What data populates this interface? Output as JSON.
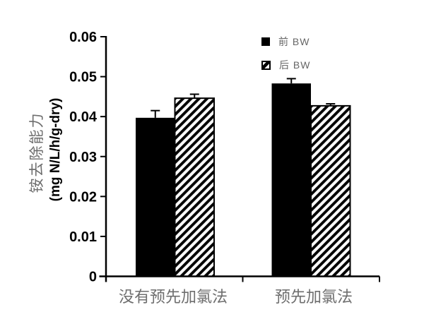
{
  "figure": {
    "background": "#ffffff",
    "axis_color": "#000000",
    "gray_text_color": "#6e6e6e"
  },
  "legend": {
    "position": "top-right",
    "items": [
      {
        "label": "前 BW",
        "swatch": "solid-black-square"
      },
      {
        "label": "后 BW",
        "swatch": "diagonal-hatch-square"
      }
    ]
  },
  "chart_data": {
    "type": "bar",
    "title": "",
    "categories": [
      "没有预先加氯法",
      "预先加氯法"
    ],
    "series": [
      {
        "name": "前 BW",
        "fill": "solid",
        "color": "#000000",
        "values": [
          0.0397,
          0.0483
        ],
        "errors_plus": [
          0.0018,
          0.0012
        ]
      },
      {
        "name": "后 BW",
        "fill": "diagonal-hatch",
        "color": "#000000",
        "values": [
          0.0446,
          0.0427
        ],
        "errors_plus": [
          0.001,
          0.0005
        ]
      }
    ],
    "ylabel_cn": "铵去除能力",
    "ylabel_units": "(mg N/L/h/g-dry)",
    "xlabel": "",
    "ylim": [
      0,
      0.06
    ],
    "ytick_values": [
      0,
      0.01,
      0.02,
      0.03,
      0.04,
      0.05,
      0.06
    ],
    "ytick_labels": [
      "0",
      "0.01",
      "0.02",
      "0.03",
      "0.04",
      "0.05",
      "0.06"
    ],
    "grid": false,
    "error_bars": "upper-only",
    "legend_position": "top-right"
  }
}
